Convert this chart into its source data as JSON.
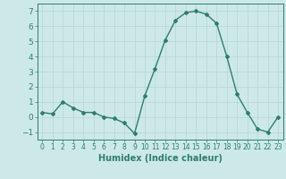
{
  "x": [
    0,
    1,
    2,
    3,
    4,
    5,
    6,
    7,
    8,
    9,
    10,
    11,
    12,
    13,
    14,
    15,
    16,
    17,
    18,
    19,
    20,
    21,
    22,
    23
  ],
  "y": [
    0.3,
    0.2,
    1.0,
    0.6,
    0.3,
    0.3,
    0.0,
    -0.1,
    -0.4,
    -1.1,
    1.4,
    3.2,
    5.1,
    6.4,
    6.9,
    7.0,
    6.8,
    6.2,
    4.0,
    1.5,
    0.3,
    -0.8,
    -1.0,
    0.0
  ],
  "line_color": "#2e7d6e",
  "marker": "D",
  "marker_size": 2.0,
  "bg_color": "#cce9e7",
  "grid_color": "#b8d8d6",
  "xlabel": "Humidex (Indice chaleur)",
  "xlabel_color": "#2e7d6e",
  "xlabel_fontsize": 7,
  "xlim": [
    -0.5,
    23.5
  ],
  "ylim": [
    -1.5,
    7.5
  ],
  "yticks": [
    -1,
    0,
    1,
    2,
    3,
    4,
    5,
    6,
    7
  ],
  "xticks": [
    0,
    1,
    2,
    3,
    4,
    5,
    6,
    7,
    8,
    9,
    10,
    11,
    12,
    13,
    14,
    15,
    16,
    17,
    18,
    19,
    20,
    21,
    22,
    23
  ],
  "tick_color": "#2e7d6e",
  "xtick_fontsize": 5.5,
  "ytick_fontsize": 6.5,
  "spine_color": "#2e7d6e",
  "line_width": 1.0
}
